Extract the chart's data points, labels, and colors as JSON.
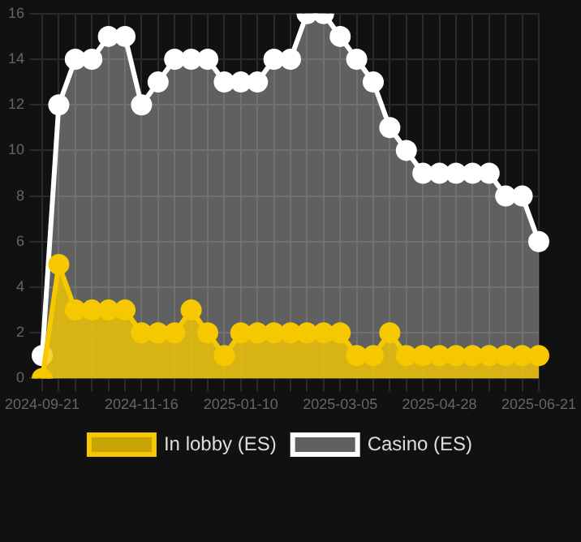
{
  "chart_data": {
    "type": "area",
    "categories": [
      "2024-09-21",
      null,
      null,
      null,
      null,
      null,
      "2024-11-16",
      null,
      null,
      null,
      null,
      null,
      "2025-01-10",
      null,
      null,
      null,
      null,
      null,
      "2025-03-05",
      null,
      null,
      null,
      null,
      null,
      "2025-04-28",
      null,
      null,
      null,
      null,
      null,
      "2025-06-21"
    ],
    "series": [
      {
        "name": "In lobby (ES)",
        "color": "#f5c800",
        "values": [
          0,
          5,
          3,
          3,
          3,
          3,
          2,
          2,
          2,
          3,
          2,
          1,
          2,
          2,
          2,
          2,
          2,
          2,
          2,
          1,
          1,
          2,
          1,
          1,
          1,
          1,
          1,
          1,
          1,
          1,
          1
        ]
      },
      {
        "name": "Casino (ES)",
        "color": "#ffffff",
        "values": [
          1,
          12,
          14,
          14,
          15,
          15,
          12,
          13,
          14,
          14,
          14,
          13,
          13,
          13,
          14,
          14,
          16,
          16,
          15,
          14,
          13,
          11,
          10,
          9,
          9,
          9,
          9,
          9,
          8,
          8,
          6
        ]
      }
    ],
    "ylim": [
      0,
      16
    ],
    "yticks": [
      0,
      2,
      4,
      6,
      8,
      10,
      12,
      14,
      16
    ],
    "grid": true,
    "legend": "bottom",
    "marker": "circle"
  }
}
